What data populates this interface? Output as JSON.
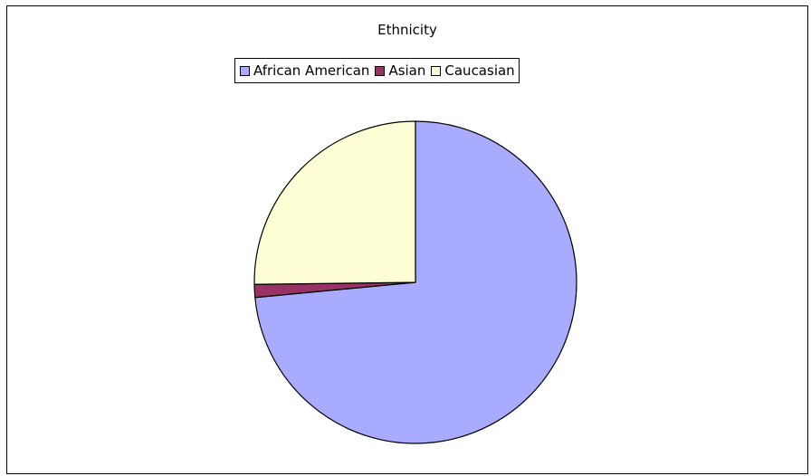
{
  "chart_data": {
    "type": "pie",
    "title": "Ethnicity",
    "legend_position": "top",
    "slices": [
      {
        "label": "African American",
        "value": 73.5,
        "color": "#a9abff"
      },
      {
        "label": "Asian",
        "value": 1.3,
        "color": "#993366"
      },
      {
        "label": "Caucasian",
        "value": 25.2,
        "color": "#ffffd5"
      }
    ]
  }
}
